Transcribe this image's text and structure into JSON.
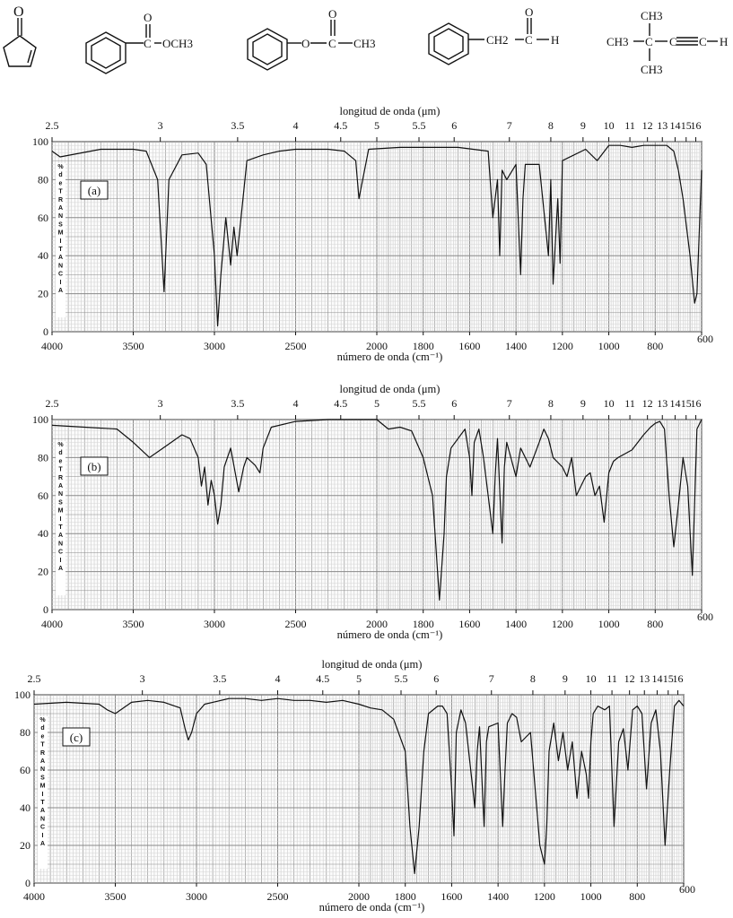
{
  "structures": [
    {
      "name": "cyclopentenone",
      "labels": [
        "O"
      ]
    },
    {
      "name": "methyl-benzoate",
      "labels": [
        "O",
        "C",
        "OCH3"
      ]
    },
    {
      "name": "phenyl-acetate",
      "labels": [
        "O",
        "O",
        "C",
        "CH3"
      ]
    },
    {
      "name": "phenylacetaldehyde",
      "labels": [
        "O",
        "CH2",
        "C",
        "H"
      ]
    },
    {
      "name": "tert-butylacetylene",
      "labels": [
        "CH3",
        "CH3",
        "C",
        "C",
        "C",
        "H",
        "CH3"
      ]
    }
  ],
  "chart_data": [
    {
      "type": "line",
      "panel_label": "(a)",
      "top_axis_label": "longitud de onda (μm)",
      "top_ticks": [
        "2.5",
        "3",
        "3.5",
        "4",
        "4.5",
        "5",
        "5.5",
        "6",
        "7",
        "8",
        "9",
        "10",
        "11",
        "12",
        "13",
        "14",
        "15",
        "16"
      ],
      "xlabel": "número de onda (cm⁻¹)",
      "x_ticks": [
        "4000",
        "3500",
        "3000",
        "2500",
        "2000",
        "1800",
        "1600",
        "1400",
        "1200",
        "1000",
        "800",
        "600"
      ],
      "y_ticks": [
        "0",
        "20",
        "40",
        "60",
        "80",
        "100"
      ],
      "ylabel": "% de TRANSMITANCIA",
      "ylim": [
        0,
        100
      ],
      "series": [
        {
          "x": [
            4000,
            3950,
            3700,
            3500,
            3420,
            3350,
            3310,
            3280,
            3200,
            3100,
            3050,
            3000,
            2980,
            2960,
            2930,
            2900,
            2880,
            2860,
            2800,
            2700,
            2600,
            2500,
            2300,
            2200,
            2130,
            2110,
            2050,
            1900,
            1750,
            1650,
            1520,
            1500,
            1480,
            1470,
            1460,
            1440,
            1400,
            1380,
            1370,
            1360,
            1300,
            1260,
            1250,
            1240,
            1220,
            1210,
            1200,
            1100,
            1050,
            1000,
            950,
            900,
            850,
            800,
            750,
            720,
            700,
            680,
            650,
            630,
            620,
            600
          ],
          "y": [
            95,
            92,
            96,
            96,
            95,
            80,
            21,
            80,
            93,
            94,
            88,
            40,
            3,
            30,
            60,
            35,
            55,
            40,
            90,
            93,
            95,
            96,
            96,
            95,
            90,
            70,
            96,
            97,
            97,
            97,
            95,
            60,
            80,
            40,
            85,
            80,
            88,
            30,
            70,
            88,
            88,
            40,
            80,
            25,
            70,
            36,
            90,
            96,
            90,
            98,
            98,
            97,
            98,
            98,
            98,
            95,
            85,
            70,
            40,
            15,
            20,
            85
          ]
        }
      ]
    },
    {
      "type": "line",
      "panel_label": "(b)",
      "top_axis_label": "longitud de onda (μm)",
      "top_ticks": [
        "2.5",
        "3",
        "3.5",
        "4",
        "4.5",
        "5",
        "5.5",
        "6",
        "7",
        "8",
        "9",
        "10",
        "11",
        "12",
        "13",
        "14",
        "15",
        "16"
      ],
      "xlabel": "número de onda (cm⁻¹)",
      "x_ticks": [
        "4000",
        "3500",
        "3000",
        "2500",
        "2000",
        "1800",
        "1600",
        "1400",
        "1200",
        "1000",
        "800",
        "600"
      ],
      "y_ticks": [
        "0",
        "20",
        "40",
        "60",
        "80",
        "100"
      ],
      "ylabel": "% de TRANSMITANCIA",
      "ylim": [
        0,
        100
      ],
      "series": [
        {
          "x": [
            4000,
            3800,
            3600,
            3500,
            3450,
            3400,
            3300,
            3200,
            3150,
            3100,
            3080,
            3060,
            3040,
            3020,
            3000,
            2980,
            2960,
            2940,
            2900,
            2850,
            2820,
            2800,
            2750,
            2720,
            2700,
            2650,
            2500,
            2300,
            2000,
            1950,
            1900,
            1850,
            1800,
            1780,
            1760,
            1730,
            1710,
            1700,
            1680,
            1650,
            1620,
            1600,
            1590,
            1580,
            1560,
            1540,
            1500,
            1490,
            1480,
            1460,
            1450,
            1440,
            1400,
            1380,
            1360,
            1340,
            1300,
            1280,
            1260,
            1240,
            1200,
            1180,
            1160,
            1140,
            1100,
            1080,
            1060,
            1040,
            1020,
            1000,
            980,
            960,
            900,
            850,
            820,
            800,
            780,
            760,
            740,
            720,
            700,
            680,
            660,
            640,
            620,
            600
          ],
          "y": [
            97,
            96,
            95,
            88,
            84,
            80,
            86,
            92,
            90,
            80,
            65,
            75,
            55,
            68,
            60,
            45,
            55,
            75,
            85,
            62,
            75,
            80,
            76,
            72,
            85,
            96,
            99,
            100,
            100,
            95,
            96,
            94,
            80,
            70,
            60,
            5,
            40,
            70,
            85,
            90,
            95,
            80,
            60,
            88,
            95,
            80,
            40,
            70,
            90,
            35,
            75,
            88,
            70,
            85,
            80,
            75,
            88,
            95,
            90,
            80,
            75,
            70,
            80,
            60,
            70,
            72,
            60,
            65,
            46,
            72,
            78,
            80,
            84,
            92,
            96,
            98,
            99,
            95,
            60,
            33,
            55,
            80,
            65,
            18,
            95,
            100
          ]
        }
      ]
    },
    {
      "type": "line",
      "panel_label": "(c)",
      "top_axis_label": "longitud de onda (μm)",
      "top_ticks": [
        "2.5",
        "3",
        "3.5",
        "4",
        "4.5",
        "5",
        "5.5",
        "6",
        "7",
        "8",
        "9",
        "10",
        "11",
        "12",
        "13",
        "14",
        "15",
        "16"
      ],
      "xlabel": "número de onda (cm⁻¹)",
      "x_ticks": [
        "4000",
        "3500",
        "3000",
        "2500",
        "2000",
        "1800",
        "1600",
        "1400",
        "1200",
        "1000",
        "800",
        "600"
      ],
      "y_ticks": [
        "0",
        "20",
        "40",
        "60",
        "80",
        "100"
      ],
      "ylabel": "% de TRANSMITANCIA",
      "ylim": [
        0,
        100
      ],
      "series": [
        {
          "x": [
            4000,
            3800,
            3600,
            3550,
            3500,
            3400,
            3300,
            3200,
            3100,
            3070,
            3050,
            3030,
            3000,
            2950,
            2900,
            2800,
            2700,
            2600,
            2500,
            2400,
            2300,
            2200,
            2100,
            2000,
            1950,
            1900,
            1850,
            1800,
            1780,
            1760,
            1740,
            1720,
            1700,
            1660,
            1640,
            1620,
            1600,
            1590,
            1580,
            1560,
            1540,
            1500,
            1490,
            1480,
            1460,
            1450,
            1440,
            1400,
            1380,
            1370,
            1360,
            1340,
            1320,
            1300,
            1260,
            1240,
            1220,
            1200,
            1190,
            1180,
            1160,
            1140,
            1120,
            1100,
            1080,
            1060,
            1040,
            1020,
            1010,
            1000,
            990,
            970,
            940,
            920,
            900,
            880,
            860,
            840,
            820,
            800,
            780,
            760,
            740,
            720,
            700,
            680,
            660,
            640,
            620,
            600
          ],
          "y": [
            95,
            96,
            95,
            92,
            90,
            96,
            97,
            96,
            93,
            82,
            76,
            80,
            90,
            95,
            96,
            98,
            98,
            97,
            98,
            97,
            97,
            96,
            97,
            95,
            93,
            92,
            87,
            70,
            30,
            5,
            30,
            70,
            90,
            94,
            94,
            90,
            50,
            25,
            80,
            92,
            85,
            40,
            70,
            83,
            30,
            75,
            83,
            85,
            30,
            60,
            85,
            90,
            88,
            75,
            80,
            50,
            20,
            10,
            30,
            70,
            85,
            65,
            80,
            60,
            75,
            45,
            70,
            58,
            45,
            75,
            90,
            94,
            92,
            94,
            30,
            75,
            82,
            60,
            92,
            94,
            90,
            50,
            85,
            92,
            70,
            20,
            60,
            94,
            97,
            94
          ]
        }
      ]
    }
  ]
}
